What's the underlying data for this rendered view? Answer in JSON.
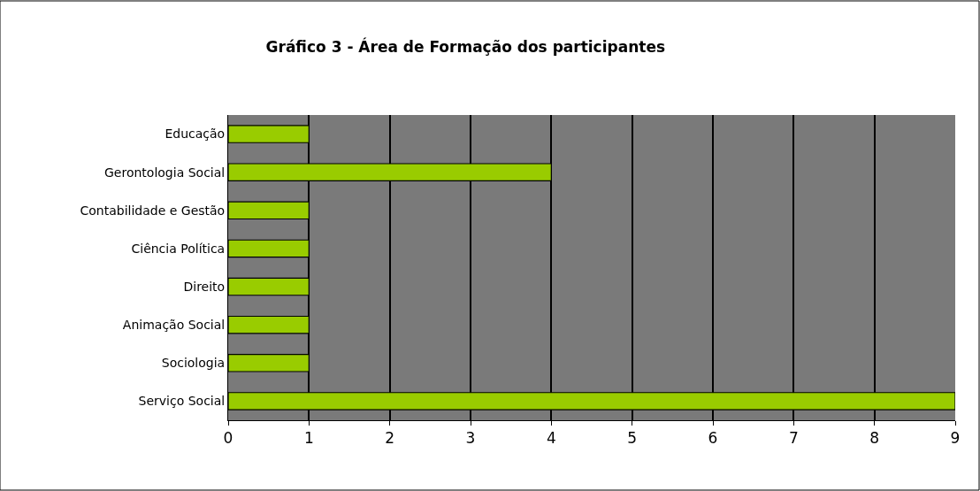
{
  "chart_data": {
    "type": "bar",
    "orientation": "horizontal",
    "title": "Gráfico 3 - Área de Formação dos participantes",
    "categories": [
      "Educação",
      "Gerontologia Social",
      "Contabilidade e Gestão",
      "Ciência Política",
      "Direito",
      "Animação Social",
      "Sociologia",
      "Serviço Social"
    ],
    "values": [
      1,
      4,
      1,
      1,
      1,
      1,
      1,
      9
    ],
    "color": "#99cc00",
    "xlim": [
      0,
      9
    ],
    "xticks": [
      0,
      1,
      2,
      3,
      4,
      5,
      6,
      7,
      8,
      9
    ],
    "grid": "x"
  }
}
